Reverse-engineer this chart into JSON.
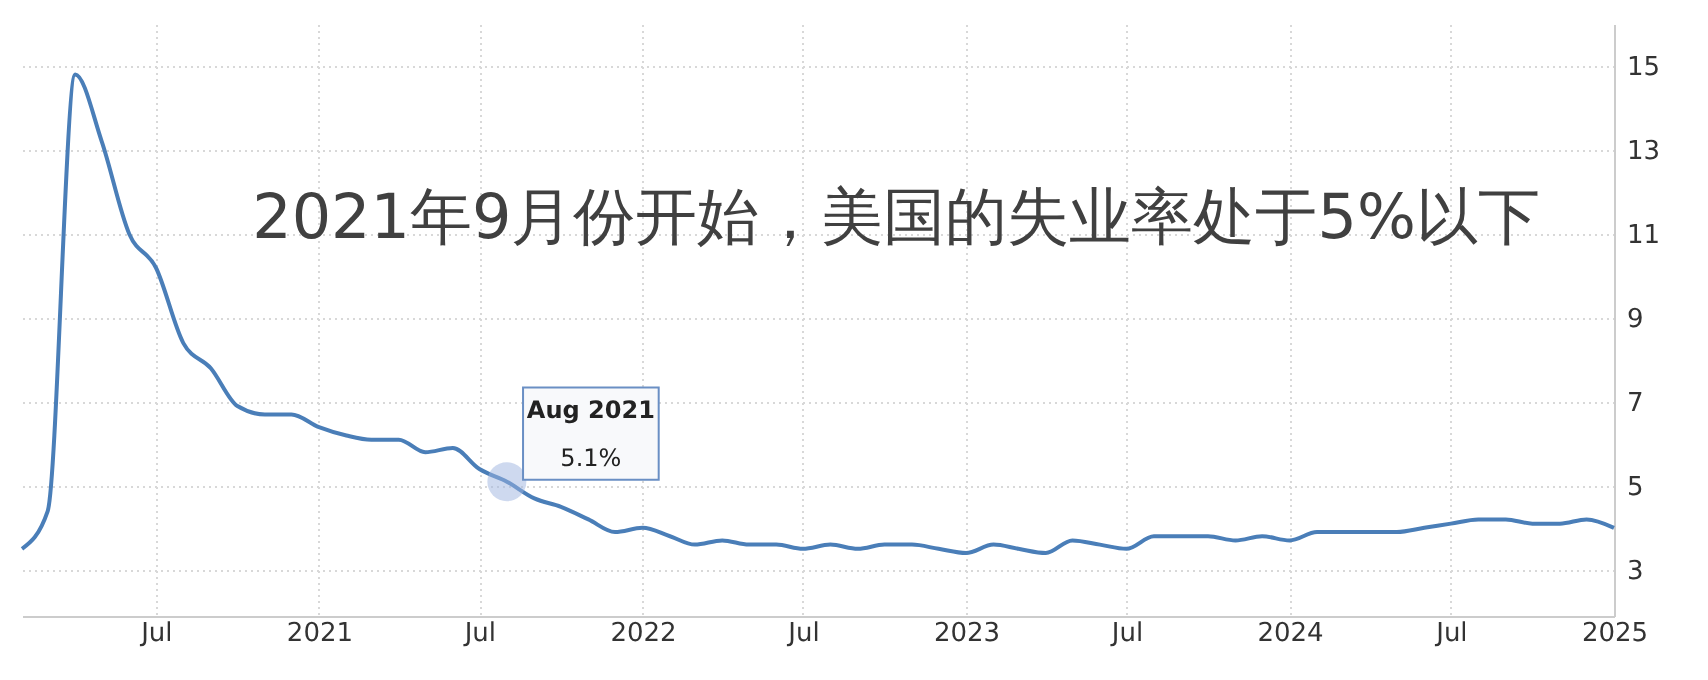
{
  "chart_data": {
    "type": "line",
    "annotations": [
      "2021年9月份开始，美国的失业率处于5%以下",
      {
        "text": "Aug 2021",
        "x": "2021-08",
        "y": 5.1
      },
      {
        "text": "5.1%",
        "x": "2021-08",
        "y": 5.1
      }
    ],
    "x": [
      "2020-02",
      "2020-03",
      "2020-04",
      "2020-05",
      "2020-06",
      "2020-07",
      "2020-08",
      "2020-09",
      "2020-10",
      "2020-11",
      "2020-12",
      "2021-01",
      "2021-02",
      "2021-03",
      "2021-04",
      "2021-05",
      "2021-06",
      "2021-07",
      "2021-08",
      "2021-09",
      "2021-10",
      "2021-11",
      "2021-12",
      "2022-01",
      "2022-02",
      "2022-03",
      "2022-04",
      "2022-05",
      "2022-06",
      "2022-07",
      "2022-08",
      "2022-09",
      "2022-10",
      "2022-11",
      "2022-12",
      "2023-01",
      "2023-02",
      "2023-03",
      "2023-04",
      "2023-05",
      "2023-06",
      "2023-07",
      "2023-08",
      "2023-09",
      "2023-10",
      "2023-11",
      "2023-12",
      "2024-01",
      "2024-02",
      "2024-03",
      "2024-04",
      "2024-05",
      "2024-06",
      "2024-07",
      "2024-08",
      "2024-09",
      "2024-10",
      "2024-11",
      "2024-12",
      "2025-01"
    ],
    "series": [
      {
        "color": "#4a7eb8",
        "values": [
          3.5,
          4.4,
          14.8,
          13.2,
          11.0,
          10.2,
          8.4,
          7.8,
          6.9,
          6.7,
          6.7,
          6.4,
          6.2,
          6.1,
          6.1,
          5.8,
          5.9,
          5.4,
          5.1,
          4.7,
          4.5,
          4.2,
          3.9,
          4.0,
          3.8,
          3.6,
          3.7,
          3.6,
          3.6,
          3.5,
          3.6,
          3.5,
          3.6,
          3.6,
          3.5,
          3.4,
          3.6,
          3.5,
          3.4,
          3.7,
          3.6,
          3.5,
          3.8,
          3.8,
          3.8,
          3.7,
          3.8,
          3.7,
          3.9,
          3.9,
          3.9,
          3.9,
          4.0,
          4.1,
          4.2,
          4.2,
          4.1,
          4.1,
          4.2,
          4.0
        ]
      }
    ],
    "xlim": [
      "2020-02",
      "2025-01"
    ],
    "xticks": [
      {
        "value": "2020-07",
        "label": "Jul"
      },
      {
        "value": "2021-01",
        "label": "2021"
      },
      {
        "value": "2021-07",
        "label": "Jul"
      },
      {
        "value": "2022-01",
        "label": "2022"
      },
      {
        "value": "2022-07",
        "label": "Jul"
      },
      {
        "value": "2023-01",
        "label": "2023"
      },
      {
        "value": "2023-07",
        "label": "Jul"
      },
      {
        "value": "2024-01",
        "label": "2024"
      },
      {
        "value": "2024-07",
        "label": "Jul"
      },
      {
        "value": "2025-01",
        "label": "2025"
      }
    ],
    "ylim": [
      1.9,
      16
    ],
    "yticks": [
      3,
      5,
      7,
      9,
      11,
      13,
      15
    ],
    "grid": true,
    "marker": "none",
    "line_style": "solid"
  }
}
